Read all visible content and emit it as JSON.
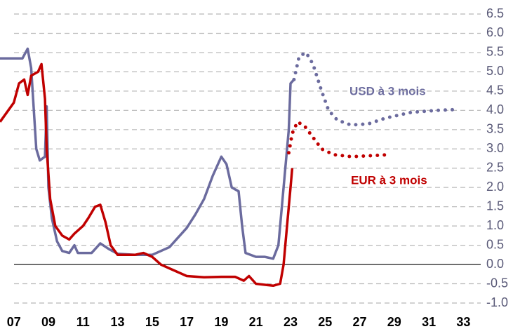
{
  "chart_data": {
    "type": "line",
    "xlim": [
      6.2,
      34
    ],
    "ylim": [
      -1,
      6.5
    ],
    "xticks": [
      {
        "value": 7,
        "label": "07"
      },
      {
        "value": 9,
        "label": "09"
      },
      11,
      13,
      15,
      17,
      19,
      21,
      23,
      25,
      27,
      29,
      31,
      33
    ],
    "yticks": [
      6.5,
      {
        "value": 6,
        "label": "6.0"
      },
      5.5,
      {
        "value": 5,
        "label": "5.0"
      },
      4.5,
      {
        "value": 4,
        "label": "4.0"
      },
      3.5,
      {
        "value": 3,
        "label": "3.0"
      },
      2.5,
      {
        "value": 2,
        "label": "2.0"
      },
      1.5,
      {
        "value": 1,
        "label": "1.0"
      },
      0.5,
      {
        "value": 0,
        "label": "0.0"
      },
      -0.5,
      {
        "value": -1,
        "label": "-1.0"
      }
    ],
    "grid": true,
    "series": [
      {
        "name": "USD à 3 mois",
        "color": "#6b6b9e",
        "x": [
          6.2,
          7.5,
          7.8,
          8.0,
          8.3,
          8.5,
          8.8,
          8.9,
          9.0,
          9.2,
          9.5,
          9.8,
          10.2,
          10.5,
          10.7,
          11.5,
          12.0,
          12.5,
          13,
          14,
          15,
          16,
          16.5,
          17,
          17.5,
          18,
          18.5,
          19,
          19.3,
          19.6,
          20,
          20.2,
          20.4,
          21,
          21.5,
          22,
          22.3,
          22.6,
          22.9,
          23.0,
          23.2
        ],
        "values": [
          5.35,
          5.35,
          5.6,
          5.1,
          3.0,
          2.7,
          2.8,
          4.1,
          2.0,
          1.2,
          0.6,
          0.35,
          0.3,
          0.5,
          0.3,
          0.3,
          0.55,
          0.4,
          0.28,
          0.25,
          0.25,
          0.45,
          0.7,
          0.95,
          1.3,
          1.7,
          2.3,
          2.8,
          2.6,
          2.0,
          1.9,
          1.0,
          0.3,
          0.2,
          0.2,
          0.15,
          0.5,
          2.0,
          3.5,
          4.7,
          4.8
        ],
        "forecast_x": [
          23.2,
          23.5,
          23.9,
          24.3,
          24.8,
          25.2,
          25.7,
          26.5,
          27.5,
          28.5,
          30,
          31.5,
          32.5
        ],
        "forecast_values": [
          4.8,
          5.4,
          5.5,
          5.2,
          4.5,
          4.0,
          3.75,
          3.62,
          3.65,
          3.8,
          3.95,
          4.0,
          4.02
        ]
      },
      {
        "name": "EUR à 3 mois",
        "color": "#c00000",
        "x": [
          6.2,
          7.0,
          7.3,
          7.6,
          7.8,
          8.0,
          8.4,
          8.6,
          8.8,
          8.9,
          9.1,
          9.4,
          9.8,
          10.2,
          10.5,
          11,
          11.3,
          11.7,
          12.0,
          12.3,
          12.6,
          13,
          14,
          14.5,
          15,
          15.5,
          16,
          17,
          18,
          19,
          19.8,
          20.3,
          20.6,
          21,
          22,
          22.4,
          22.6,
          22.8,
          23.0,
          23.1
        ],
        "values": [
          3.7,
          4.2,
          4.7,
          4.8,
          4.4,
          4.9,
          5.0,
          5.2,
          4.3,
          3.0,
          1.7,
          1.0,
          0.75,
          0.65,
          0.8,
          1.0,
          1.2,
          1.5,
          1.55,
          1.1,
          0.5,
          0.25,
          0.25,
          0.3,
          0.2,
          0.0,
          -0.1,
          -0.3,
          -0.33,
          -0.32,
          -0.32,
          -0.42,
          -0.3,
          -0.5,
          -0.55,
          -0.5,
          0.0,
          1.0,
          2.0,
          2.5
        ],
        "forecast_x": [
          22.9,
          23.1,
          23.4,
          23.8,
          24.3,
          24.8,
          25.5,
          26.5,
          27.5,
          28.7
        ],
        "forecast_values": [
          2.9,
          3.4,
          3.7,
          3.6,
          3.3,
          3.0,
          2.85,
          2.8,
          2.82,
          2.85
        ]
      }
    ]
  }
}
